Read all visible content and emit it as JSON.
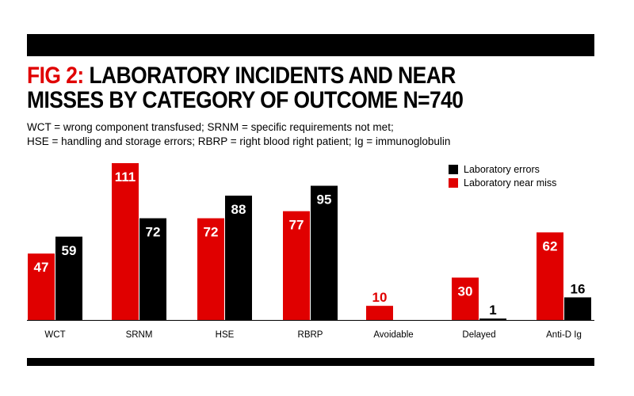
{
  "header": {
    "title_prefix": "FIG 2:",
    "title_line1": " LABORATORY INCIDENTS AND NEAR",
    "title_line2": "MISSES BY CATEGORY OF OUTCOME N=740",
    "subtitle_line1": "WCT = wrong component transfused; SRNM = specific requirements not met;",
    "subtitle_line2": "HSE = handling and storage errors; RBRP = right blood right patient; Ig = immunoglobulin"
  },
  "colors": {
    "near_miss": "#e00000",
    "errors": "#000000",
    "label_on_bar": "#ffffff"
  },
  "chart_data": {
    "type": "bar",
    "categories": [
      "WCT",
      "SRNM",
      "HSE",
      "RBRP",
      "Avoidable",
      "Delayed",
      "Anti-D Ig"
    ],
    "series": [
      {
        "name": "Laboratory near miss",
        "color": "#e00000",
        "values": [
          47,
          111,
          72,
          77,
          10,
          30,
          62
        ]
      },
      {
        "name": "Laboratory errors",
        "color": "#000000",
        "values": [
          59,
          72,
          88,
          95,
          null,
          1,
          16
        ]
      }
    ],
    "ylim": [
      0,
      111
    ],
    "legend_position": "top-right",
    "grid": false
  },
  "legend": {
    "items": [
      {
        "label": "Laboratory errors",
        "color": "#000000"
      },
      {
        "label": "Laboratory near miss",
        "color": "#e00000"
      }
    ]
  }
}
